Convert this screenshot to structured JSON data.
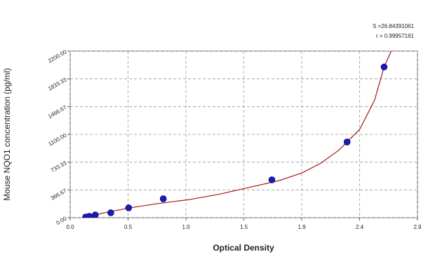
{
  "chart_data": {
    "type": "scatter",
    "x_label": "Optical Density",
    "y_label": "Mouse NQO1 concentration (pg/ml)",
    "annotations": [
      "S =26.84391061",
      "r = 0.99957161"
    ],
    "x": [
      0.13,
      0.16,
      0.21,
      0.34,
      0.49,
      0.78,
      1.69,
      2.32,
      2.63
    ],
    "values": [
      9,
      18,
      37,
      65,
      130,
      250,
      500,
      1000,
      1990
    ],
    "color": "#1a1ab8",
    "curve": {
      "color": "#a01818",
      "x": [
        0.13,
        0.3,
        0.5,
        0.75,
        1.0,
        1.25,
        1.5,
        1.75,
        1.94,
        2.1,
        2.25,
        2.425,
        2.55,
        2.63,
        2.69
      ],
      "values": [
        8,
        70,
        130,
        190,
        240,
        310,
        400,
        490,
        590,
        720,
        890,
        1165,
        1550,
        1990,
        2200
      ]
    },
    "xlim": [
      0,
      2.91
    ],
    "xticks": [
      {
        "value": 0,
        "label": "0.0"
      },
      {
        "value": 0.485,
        "label": "0.5"
      },
      {
        "value": 0.97,
        "label": "1.0"
      },
      {
        "value": 1.455,
        "label": "1.5"
      },
      {
        "value": 1.94,
        "label": "1.9"
      },
      {
        "value": 2.425,
        "label": "2.4"
      },
      {
        "value": 2.91,
        "label": "2.9"
      }
    ],
    "ylim": [
      0,
      2200
    ],
    "yticks": [
      {
        "value": 0,
        "label": "0.00"
      },
      {
        "value": 366.67,
        "label": "366.67"
      },
      {
        "value": 733.33,
        "label": "733.33"
      },
      {
        "value": 1100,
        "label": "1100.00"
      },
      {
        "value": 1466.67,
        "label": "1466.67"
      },
      {
        "value": 1833.33,
        "label": "1833.33"
      },
      {
        "value": 2200,
        "label": "2200.00"
      }
    ],
    "grid": true
  }
}
